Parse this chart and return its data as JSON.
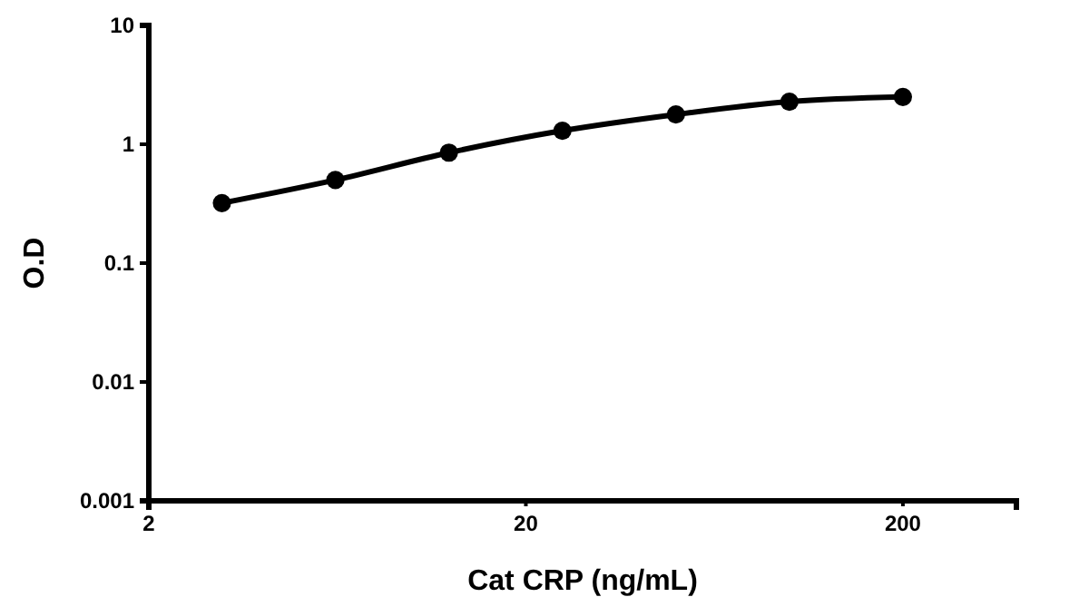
{
  "chart_data": {
    "type": "line",
    "xlabel": "Cat CRP (ng/mL)",
    "ylabel": "O.D",
    "log": "xy",
    "marker": "circle",
    "line_style": "solid",
    "grid": false,
    "x": [
      3.125,
      6.25,
      12.5,
      25,
      50,
      100,
      200
    ],
    "series": [
      {
        "color": "#000000",
        "values": [
          0.32,
          0.5,
          0.85,
          1.3,
          1.78,
          2.28,
          2.5
        ]
      }
    ],
    "xlim": [
      2,
      400
    ],
    "xticks": [
      2,
      20,
      200
    ],
    "ylim": [
      0.001,
      10
    ],
    "yticks": [
      0.001,
      0.01,
      0.1,
      1,
      10
    ]
  }
}
